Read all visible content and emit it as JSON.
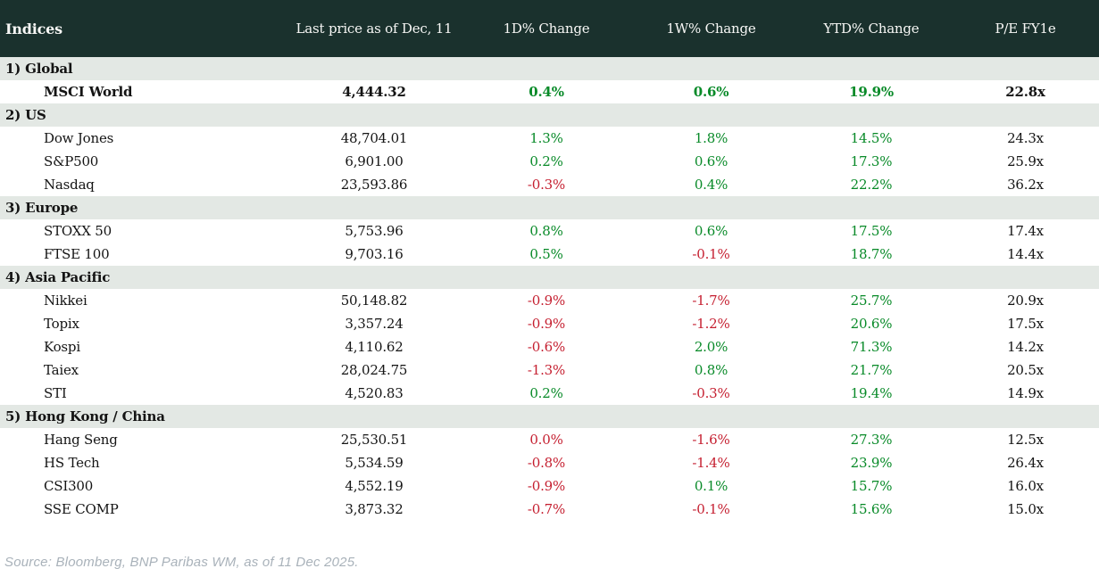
{
  "colors": {
    "header-bg": "#1a312d",
    "header-text": "#f7f7f5",
    "section-bg": "#e3e8e4",
    "text": "#141414",
    "pos": "#088a28",
    "neg": "#c51f30",
    "source": "#a9b2ba"
  },
  "footer": {
    "source": "Source: Bloomberg, BNP Paribas WM, as of 11 Dec 2025."
  },
  "chart_data": {
    "type": "table",
    "title": "Indices",
    "columns": [
      "Last price as of Dec, 11",
      "1D% Change",
      "1W% Change",
      "YTD% Change",
      "P/E FY1e"
    ],
    "sections": [
      {
        "label": "1) Global",
        "rows": [
          {
            "name": "MSCI World",
            "emphasis": true,
            "values": [
              "4,444.32",
              "0.4%",
              "0.6%",
              "19.9%",
              "22.8x"
            ],
            "signs": [
              null,
              "pos",
              "pos",
              "pos",
              null
            ]
          }
        ]
      },
      {
        "label": "2) US",
        "rows": [
          {
            "name": "Dow Jones",
            "values": [
              "48,704.01",
              "1.3%",
              "1.8%",
              "14.5%",
              "24.3x"
            ],
            "signs": [
              null,
              "pos",
              "pos",
              "pos",
              null
            ]
          },
          {
            "name": "S&P500",
            "values": [
              "6,901.00",
              "0.2%",
              "0.6%",
              "17.3%",
              "25.9x"
            ],
            "signs": [
              null,
              "pos",
              "pos",
              "pos",
              null
            ]
          },
          {
            "name": "Nasdaq",
            "values": [
              "23,593.86",
              "-0.3%",
              "0.4%",
              "22.2%",
              "36.2x"
            ],
            "signs": [
              null,
              "neg",
              "pos",
              "pos",
              null
            ]
          }
        ]
      },
      {
        "label": "3) Europe",
        "rows": [
          {
            "name": "STOXX 50",
            "values": [
              "5,753.96",
              "0.8%",
              "0.6%",
              "17.5%",
              "17.4x"
            ],
            "signs": [
              null,
              "pos",
              "pos",
              "pos",
              null
            ]
          },
          {
            "name": "FTSE 100",
            "values": [
              "9,703.16",
              "0.5%",
              "-0.1%",
              "18.7%",
              "14.4x"
            ],
            "signs": [
              null,
              "pos",
              "neg",
              "pos",
              null
            ]
          }
        ]
      },
      {
        "label": "4) Asia Pacific",
        "rows": [
          {
            "name": "Nikkei",
            "values": [
              "50,148.82",
              "-0.9%",
              "-1.7%",
              "25.7%",
              "20.9x"
            ],
            "signs": [
              null,
              "neg",
              "neg",
              "pos",
              null
            ]
          },
          {
            "name": "Topix",
            "values": [
              "3,357.24",
              "-0.9%",
              "-1.2%",
              "20.6%",
              "17.5x"
            ],
            "signs": [
              null,
              "neg",
              "neg",
              "pos",
              null
            ]
          },
          {
            "name": "Kospi",
            "values": [
              "4,110.62",
              "-0.6%",
              "2.0%",
              "71.3%",
              "14.2x"
            ],
            "signs": [
              null,
              "neg",
              "pos",
              "pos",
              null
            ]
          },
          {
            "name": "Taiex",
            "values": [
              "28,024.75",
              "-1.3%",
              "0.8%",
              "21.7%",
              "20.5x"
            ],
            "signs": [
              null,
              "neg",
              "pos",
              "pos",
              null
            ]
          },
          {
            "name": "STI",
            "values": [
              "4,520.83",
              "0.2%",
              "-0.3%",
              "19.4%",
              "14.9x"
            ],
            "signs": [
              null,
              "pos",
              "neg",
              "pos",
              null
            ]
          }
        ]
      },
      {
        "label": "5) Hong Kong / China",
        "rows": [
          {
            "name": "Hang Seng",
            "values": [
              "25,530.51",
              "0.0%",
              "-1.6%",
              "27.3%",
              "12.5x"
            ],
            "signs": [
              null,
              "neg",
              "neg",
              "pos",
              null
            ]
          },
          {
            "name": "HS Tech",
            "values": [
              "5,534.59",
              "-0.8%",
              "-1.4%",
              "23.9%",
              "26.4x"
            ],
            "signs": [
              null,
              "neg",
              "neg",
              "pos",
              null
            ]
          },
          {
            "name": "CSI300",
            "values": [
              "4,552.19",
              "-0.9%",
              "0.1%",
              "15.7%",
              "16.0x"
            ],
            "signs": [
              null,
              "neg",
              "pos",
              "pos",
              null
            ]
          },
          {
            "name": "SSE COMP",
            "values": [
              "3,873.32",
              "-0.7%",
              "-0.1%",
              "15.6%",
              "15.0x"
            ],
            "signs": [
              null,
              "neg",
              "neg",
              "pos",
              null
            ]
          }
        ]
      }
    ]
  }
}
